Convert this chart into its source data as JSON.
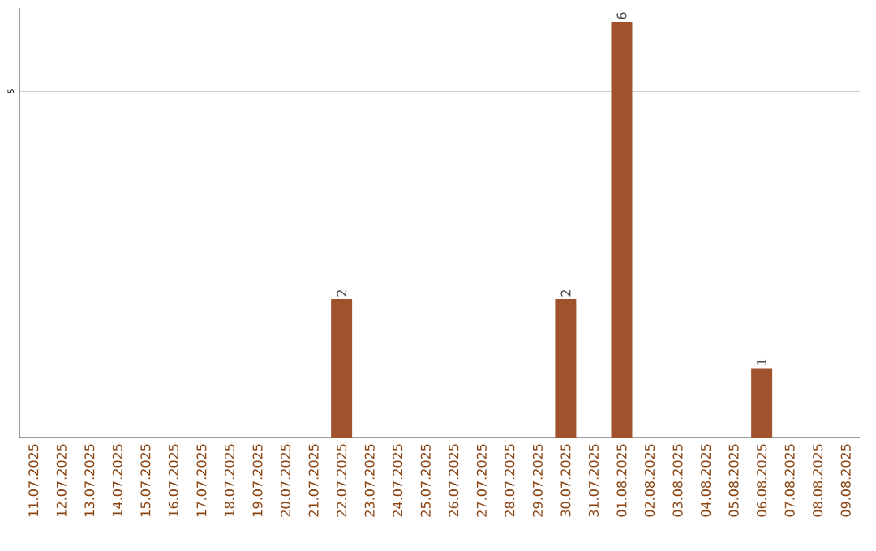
{
  "chart_data": {
    "type": "bar",
    "categories": [
      "11.07.2025",
      "12.07.2025",
      "13.07.2025",
      "14.07.2025",
      "15.07.2025",
      "16.07.2025",
      "17.07.2025",
      "18.07.2025",
      "19.07.2025",
      "20.07.2025",
      "21.07.2025",
      "22.07.2025",
      "23.07.2025",
      "24.07.2025",
      "25.07.2025",
      "26.07.2025",
      "27.07.2025",
      "28.07.2025",
      "29.07.2025",
      "30.07.2025",
      "31.07.2025",
      "01.08.2025",
      "02.08.2025",
      "03.08.2025",
      "04.08.2025",
      "05.08.2025",
      "06.08.2025",
      "07.08.2025",
      "08.08.2025",
      "09.08.2025"
    ],
    "values": [
      0,
      0,
      0,
      0,
      0,
      0,
      0,
      0,
      0,
      0,
      0,
      2,
      0,
      0,
      0,
      0,
      0,
      0,
      0,
      2,
      0,
      6,
      0,
      0,
      0,
      0,
      1,
      0,
      0,
      0
    ],
    "value_labels": [
      null,
      null,
      null,
      null,
      null,
      null,
      null,
      null,
      null,
      null,
      null,
      "2",
      null,
      null,
      null,
      null,
      null,
      null,
      null,
      "2",
      null,
      "6",
      null,
      null,
      null,
      null,
      "1",
      null,
      null,
      null
    ],
    "color": "#a0522d",
    "ylim": [
      0,
      6.2
    ],
    "yticks": [
      5
    ],
    "grid": "y"
  }
}
